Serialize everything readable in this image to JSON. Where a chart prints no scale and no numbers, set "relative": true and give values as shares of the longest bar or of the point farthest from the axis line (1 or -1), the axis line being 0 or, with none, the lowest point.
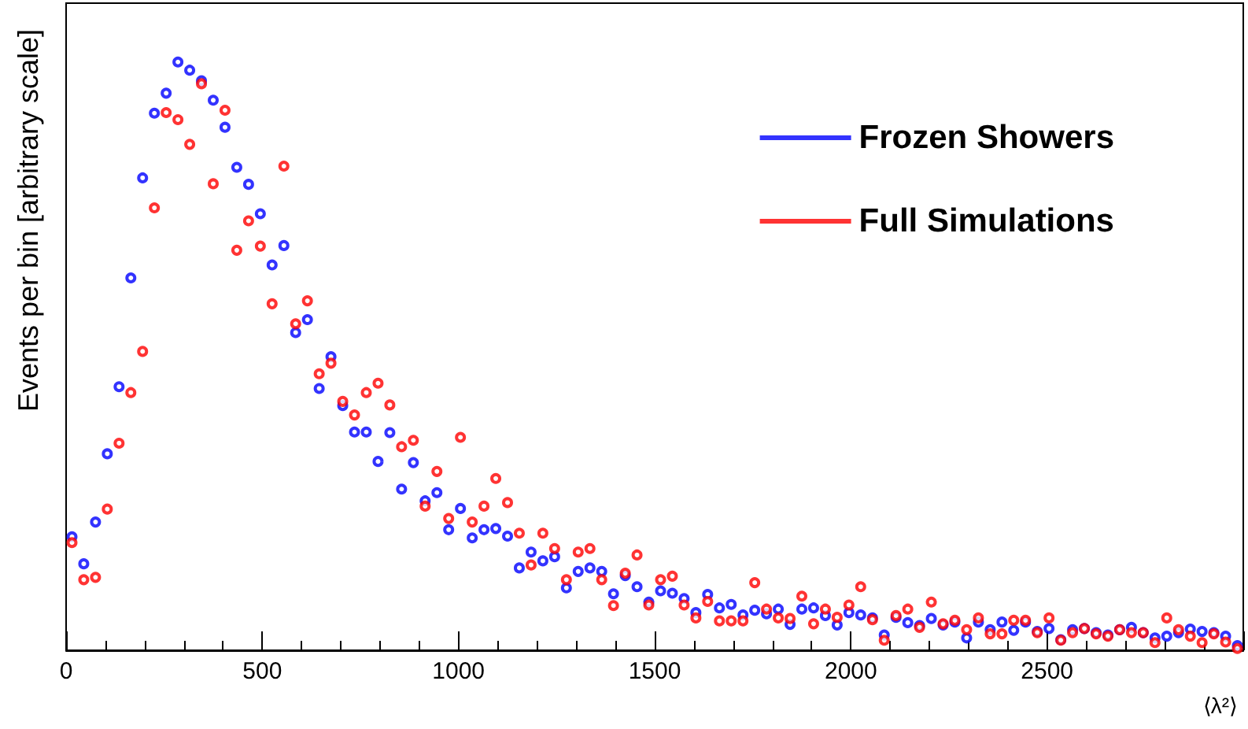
{
  "chart_data": {
    "type": "scatter",
    "ylabel": "Events per bin [arbitrary scale]",
    "xlabel": "⟨λ²⟩",
    "relative": true,
    "x": [
      15,
      45,
      75,
      105,
      135,
      165,
      195,
      225,
      255,
      285,
      315,
      345,
      375,
      405,
      435,
      465,
      495,
      525,
      555,
      585,
      615,
      645,
      675,
      705,
      735,
      765,
      795,
      825,
      855,
      885,
      915,
      945,
      975,
      1005,
      1035,
      1065,
      1095,
      1125,
      1155,
      1185,
      1215,
      1245,
      1275,
      1305,
      1335,
      1365,
      1395,
      1425,
      1455,
      1485,
      1515,
      1545,
      1575,
      1605,
      1635,
      1665,
      1695,
      1725,
      1755,
      1785,
      1815,
      1845,
      1875,
      1905,
      1935,
      1965,
      1995,
      2025,
      2055,
      2085,
      2115,
      2145,
      2175,
      2205,
      2235,
      2265,
      2295,
      2325,
      2355,
      2385,
      2415,
      2445,
      2475,
      2505,
      2535,
      2565,
      2595,
      2625,
      2655,
      2685,
      2715,
      2745,
      2775,
      2805,
      2835,
      2865,
      2895,
      2925,
      2955,
      2985
    ],
    "xlim": [
      0,
      3000
    ],
    "xticks": [
      0,
      500,
      1000,
      1500,
      2000,
      2500
    ],
    "marker": "circle",
    "legend": "top right",
    "grid": false,
    "series": [
      {
        "name": "Frozen Showers",
        "color": "#0000ff",
        "values": [
          0.193,
          0.147,
          0.218,
          0.334,
          0.448,
          0.633,
          0.803,
          0.913,
          0.947,
          1.0,
          0.986,
          0.968,
          0.935,
          0.889,
          0.821,
          0.792,
          0.742,
          0.655,
          0.688,
          0.54,
          0.562,
          0.445,
          0.499,
          0.416,
          0.371,
          0.371,
          0.321,
          0.37,
          0.274,
          0.319,
          0.254,
          0.268,
          0.205,
          0.241,
          0.191,
          0.205,
          0.207,
          0.194,
          0.14,
          0.167,
          0.152,
          0.159,
          0.106,
          0.134,
          0.14,
          0.134,
          0.096,
          0.127,
          0.108,
          0.082,
          0.101,
          0.097,
          0.088,
          0.064,
          0.095,
          0.072,
          0.078,
          0.06,
          0.068,
          0.062,
          0.07,
          0.044,
          0.07,
          0.072,
          0.059,
          0.043,
          0.064,
          0.06,
          0.055,
          0.026,
          0.056,
          0.047,
          0.042,
          0.054,
          0.043,
          0.048,
          0.021,
          0.048,
          0.035,
          0.048,
          0.034,
          0.048,
          0.032,
          0.037,
          0.018,
          0.035,
          0.037,
          0.03,
          0.026,
          0.035,
          0.039,
          0.03,
          0.021,
          0.024,
          0.03,
          0.036,
          0.032,
          0.03,
          0.024,
          0.008
        ]
      },
      {
        "name": "Full Simulations",
        "color": "#ff0000",
        "values": [
          0.183,
          0.12,
          0.124,
          0.24,
          0.352,
          0.438,
          0.508,
          0.752,
          0.914,
          0.902,
          0.86,
          0.963,
          0.793,
          0.918,
          0.68,
          0.73,
          0.687,
          0.589,
          0.823,
          0.555,
          0.594,
          0.47,
          0.488,
          0.423,
          0.4,
          0.438,
          0.454,
          0.417,
          0.346,
          0.357,
          0.245,
          0.304,
          0.224,
          0.362,
          0.218,
          0.245,
          0.292,
          0.251,
          0.199,
          0.145,
          0.199,
          0.173,
          0.12,
          0.167,
          0.173,
          0.12,
          0.076,
          0.131,
          0.162,
          0.077,
          0.12,
          0.126,
          0.077,
          0.055,
          0.083,
          0.05,
          0.05,
          0.05,
          0.115,
          0.07,
          0.055,
          0.054,
          0.092,
          0.045,
          0.07,
          0.056,
          0.077,
          0.108,
          0.052,
          0.017,
          0.059,
          0.07,
          0.039,
          0.082,
          0.045,
          0.051,
          0.035,
          0.055,
          0.028,
          0.028,
          0.051,
          0.051,
          0.03,
          0.055,
          0.017,
          0.03,
          0.037,
          0.028,
          0.024,
          0.035,
          0.03,
          0.03,
          0.013,
          0.055,
          0.035,
          0.024,
          0.013,
          0.028,
          0.014,
          0.003
        ]
      }
    ]
  }
}
